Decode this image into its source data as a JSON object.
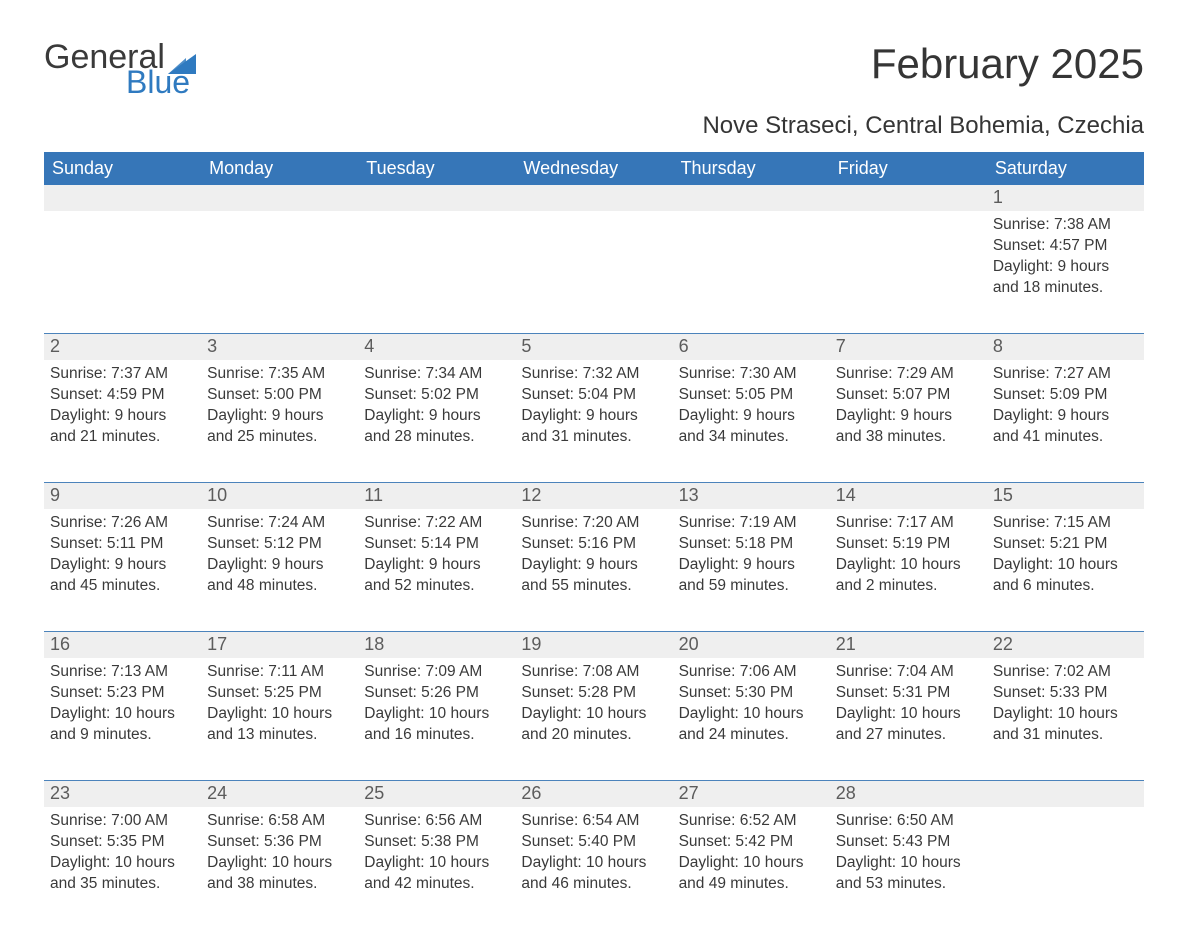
{
  "brand": {
    "word1": "General",
    "word2": "Blue",
    "logo_color": "#2f7ac0"
  },
  "title": "February 2025",
  "subtitle": "Nove Straseci, Central Bohemia, Czechia",
  "colors": {
    "header_bg": "#3676b8",
    "header_text": "#ffffff",
    "daynum_bg": "#efefef",
    "daynum_text": "#5c5c5c",
    "body_text": "#3a3a3a",
    "separator": "#4b83bb",
    "page_bg": "#ffffff"
  },
  "day_headers": [
    "Sunday",
    "Monday",
    "Tuesday",
    "Wednesday",
    "Thursday",
    "Friday",
    "Saturday"
  ],
  "weeks": [
    {
      "nums": [
        "",
        "",
        "",
        "",
        "",
        "",
        "1"
      ],
      "texts": [
        "",
        "",
        "",
        "",
        "",
        "",
        "Sunrise: 7:38 AM\nSunset: 4:57 PM\nDaylight: 9 hours and 18 minutes."
      ]
    },
    {
      "nums": [
        "2",
        "3",
        "4",
        "5",
        "6",
        "7",
        "8"
      ],
      "texts": [
        "Sunrise: 7:37 AM\nSunset: 4:59 PM\nDaylight: 9 hours and 21 minutes.",
        "Sunrise: 7:35 AM\nSunset: 5:00 PM\nDaylight: 9 hours and 25 minutes.",
        "Sunrise: 7:34 AM\nSunset: 5:02 PM\nDaylight: 9 hours and 28 minutes.",
        "Sunrise: 7:32 AM\nSunset: 5:04 PM\nDaylight: 9 hours and 31 minutes.",
        "Sunrise: 7:30 AM\nSunset: 5:05 PM\nDaylight: 9 hours and 34 minutes.",
        "Sunrise: 7:29 AM\nSunset: 5:07 PM\nDaylight: 9 hours and 38 minutes.",
        "Sunrise: 7:27 AM\nSunset: 5:09 PM\nDaylight: 9 hours and 41 minutes."
      ]
    },
    {
      "nums": [
        "9",
        "10",
        "11",
        "12",
        "13",
        "14",
        "15"
      ],
      "texts": [
        "Sunrise: 7:26 AM\nSunset: 5:11 PM\nDaylight: 9 hours and 45 minutes.",
        "Sunrise: 7:24 AM\nSunset: 5:12 PM\nDaylight: 9 hours and 48 minutes.",
        "Sunrise: 7:22 AM\nSunset: 5:14 PM\nDaylight: 9 hours and 52 minutes.",
        "Sunrise: 7:20 AM\nSunset: 5:16 PM\nDaylight: 9 hours and 55 minutes.",
        "Sunrise: 7:19 AM\nSunset: 5:18 PM\nDaylight: 9 hours and 59 minutes.",
        "Sunrise: 7:17 AM\nSunset: 5:19 PM\nDaylight: 10 hours and 2 minutes.",
        "Sunrise: 7:15 AM\nSunset: 5:21 PM\nDaylight: 10 hours and 6 minutes."
      ]
    },
    {
      "nums": [
        "16",
        "17",
        "18",
        "19",
        "20",
        "21",
        "22"
      ],
      "texts": [
        "Sunrise: 7:13 AM\nSunset: 5:23 PM\nDaylight: 10 hours and 9 minutes.",
        "Sunrise: 7:11 AM\nSunset: 5:25 PM\nDaylight: 10 hours and 13 minutes.",
        "Sunrise: 7:09 AM\nSunset: 5:26 PM\nDaylight: 10 hours and 16 minutes.",
        "Sunrise: 7:08 AM\nSunset: 5:28 PM\nDaylight: 10 hours and 20 minutes.",
        "Sunrise: 7:06 AM\nSunset: 5:30 PM\nDaylight: 10 hours and 24 minutes.",
        "Sunrise: 7:04 AM\nSunset: 5:31 PM\nDaylight: 10 hours and 27 minutes.",
        "Sunrise: 7:02 AM\nSunset: 5:33 PM\nDaylight: 10 hours and 31 minutes."
      ]
    },
    {
      "nums": [
        "23",
        "24",
        "25",
        "26",
        "27",
        "28",
        ""
      ],
      "texts": [
        "Sunrise: 7:00 AM\nSunset: 5:35 PM\nDaylight: 10 hours and 35 minutes.",
        "Sunrise: 6:58 AM\nSunset: 5:36 PM\nDaylight: 10 hours and 38 minutes.",
        "Sunrise: 6:56 AM\nSunset: 5:38 PM\nDaylight: 10 hours and 42 minutes.",
        "Sunrise: 6:54 AM\nSunset: 5:40 PM\nDaylight: 10 hours and 46 minutes.",
        "Sunrise: 6:52 AM\nSunset: 5:42 PM\nDaylight: 10 hours and 49 minutes.",
        "Sunrise: 6:50 AM\nSunset: 5:43 PM\nDaylight: 10 hours and 53 minutes.",
        ""
      ]
    }
  ]
}
